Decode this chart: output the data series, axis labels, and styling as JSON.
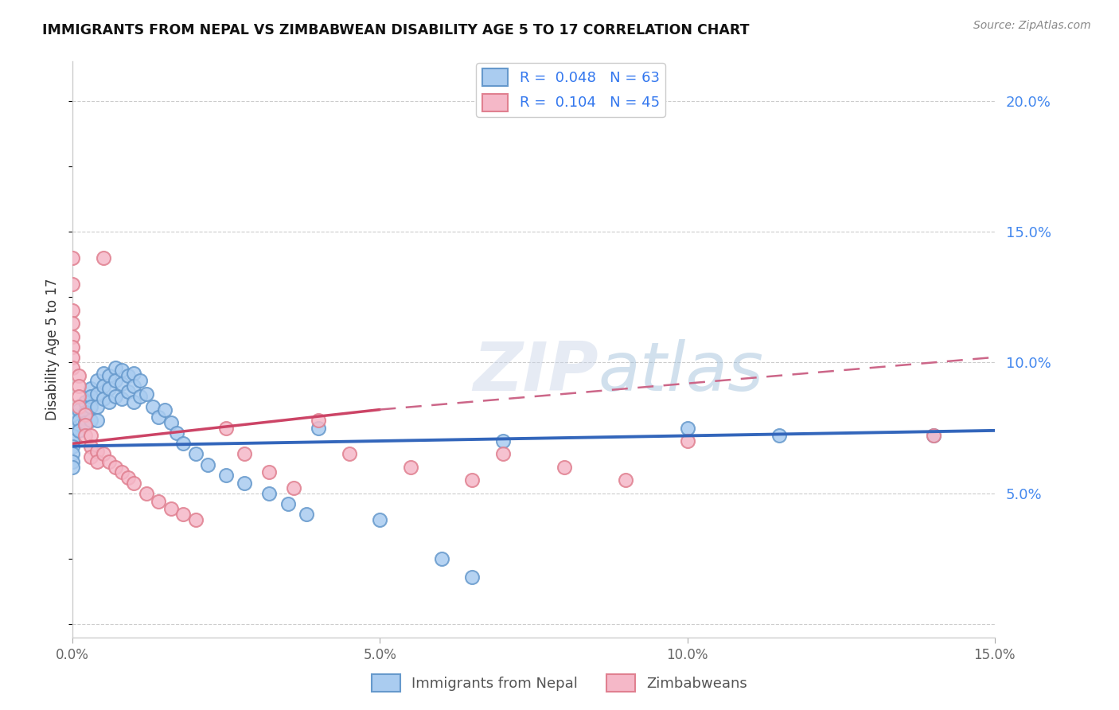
{
  "title": "IMMIGRANTS FROM NEPAL VS ZIMBABWEAN DISABILITY AGE 5 TO 17 CORRELATION CHART",
  "source": "Source: ZipAtlas.com",
  "ylabel": "Disability Age 5 to 17",
  "nepal_R": 0.048,
  "nepal_N": 63,
  "zimbabwe_R": 0.104,
  "zimbabwe_N": 45,
  "blue_face": "#aaccf0",
  "blue_edge": "#6699cc",
  "pink_face": "#f5b8c8",
  "pink_edge": "#e08090",
  "blue_line": "#3366bb",
  "pink_line_solid": "#cc4466",
  "pink_line_dashed": "#cc6688",
  "legend_bottom": [
    "Immigrants from Nepal",
    "Zimbabweans"
  ],
  "nepal_x": [
    0.0,
    0.0,
    0.0,
    0.0,
    0.0,
    0.0,
    0.0,
    0.0,
    0.001,
    0.001,
    0.001,
    0.002,
    0.002,
    0.002,
    0.003,
    0.003,
    0.003,
    0.003,
    0.004,
    0.004,
    0.004,
    0.004,
    0.005,
    0.005,
    0.005,
    0.006,
    0.006,
    0.006,
    0.007,
    0.007,
    0.007,
    0.008,
    0.008,
    0.008,
    0.009,
    0.009,
    0.01,
    0.01,
    0.01,
    0.011,
    0.011,
    0.012,
    0.013,
    0.014,
    0.015,
    0.016,
    0.017,
    0.018,
    0.02,
    0.022,
    0.025,
    0.028,
    0.032,
    0.035,
    0.038,
    0.04,
    0.05,
    0.06,
    0.065,
    0.07,
    0.1,
    0.115,
    0.14
  ],
  "nepal_y": [
    0.08,
    0.075,
    0.072,
    0.07,
    0.068,
    0.065,
    0.062,
    0.06,
    0.082,
    0.078,
    0.074,
    0.085,
    0.081,
    0.077,
    0.09,
    0.087,
    0.083,
    0.078,
    0.093,
    0.088,
    0.083,
    0.078,
    0.096,
    0.091,
    0.086,
    0.095,
    0.09,
    0.085,
    0.098,
    0.093,
    0.087,
    0.097,
    0.092,
    0.086,
    0.095,
    0.089,
    0.096,
    0.091,
    0.085,
    0.093,
    0.087,
    0.088,
    0.083,
    0.079,
    0.082,
    0.077,
    0.073,
    0.069,
    0.065,
    0.061,
    0.057,
    0.054,
    0.05,
    0.046,
    0.042,
    0.075,
    0.04,
    0.025,
    0.018,
    0.07,
    0.075,
    0.072,
    0.072
  ],
  "zimbabwe_x": [
    0.0,
    0.0,
    0.0,
    0.0,
    0.0,
    0.0,
    0.0,
    0.0,
    0.001,
    0.001,
    0.001,
    0.001,
    0.002,
    0.002,
    0.002,
    0.003,
    0.003,
    0.003,
    0.004,
    0.004,
    0.005,
    0.005,
    0.006,
    0.007,
    0.008,
    0.009,
    0.01,
    0.012,
    0.014,
    0.016,
    0.018,
    0.02,
    0.025,
    0.028,
    0.032,
    0.036,
    0.04,
    0.045,
    0.055,
    0.065,
    0.07,
    0.08,
    0.09,
    0.1,
    0.14
  ],
  "zimbabwe_y": [
    0.14,
    0.13,
    0.12,
    0.115,
    0.11,
    0.106,
    0.102,
    0.098,
    0.095,
    0.091,
    0.087,
    0.083,
    0.08,
    0.076,
    0.072,
    0.072,
    0.068,
    0.064,
    0.066,
    0.062,
    0.14,
    0.065,
    0.062,
    0.06,
    0.058,
    0.056,
    0.054,
    0.05,
    0.047,
    0.044,
    0.042,
    0.04,
    0.075,
    0.065,
    0.058,
    0.052,
    0.078,
    0.065,
    0.06,
    0.055,
    0.065,
    0.06,
    0.055,
    0.07,
    0.072
  ],
  "xlim": [
    0.0,
    0.15
  ],
  "ylim": [
    -0.005,
    0.215
  ],
  "nepal_trend": [
    0.0,
    0.15,
    0.068,
    0.074
  ],
  "zimbabwe_trend_solid": [
    0.0,
    0.05,
    0.069,
    0.082
  ],
  "zimbabwe_trend_dashed": [
    0.05,
    0.15,
    0.082,
    0.102
  ],
  "yticks": [
    0.0,
    0.05,
    0.1,
    0.15,
    0.2
  ],
  "ytick_labels": [
    "",
    "5.0%",
    "10.0%",
    "15.0%",
    "20.0%"
  ],
  "xticks": [
    0.0,
    0.05,
    0.1,
    0.15
  ],
  "xtick_labels": [
    "0.0%",
    "5.0%",
    "10.0%",
    "15.0%"
  ]
}
